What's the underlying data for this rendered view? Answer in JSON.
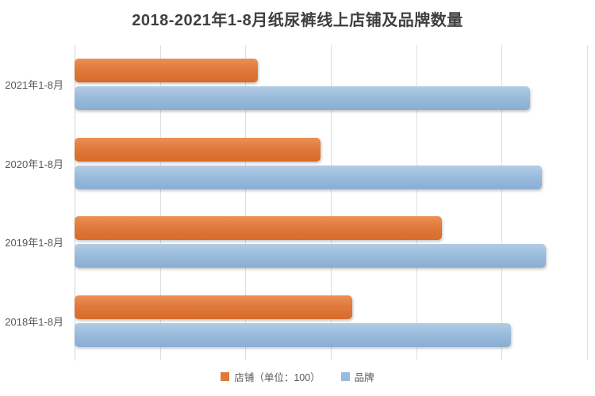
{
  "title": "2018-2021年1-8月纸尿裤线上店铺及品牌数量",
  "legend": {
    "shops_label": "店铺（单位：100）",
    "brands_label": "品牌"
  },
  "colors": {
    "shops": "#e0793c",
    "brands": "#98badb",
    "title_text": "#3f3f3f",
    "axis_text": "#595959",
    "gridline": "#dadfe6"
  },
  "chart_data": {
    "type": "bar",
    "orientation": "horizontal",
    "title": "2018-2021年1-8月纸尿裤线上店铺及品牌数量",
    "categories": [
      "2021年1-8月",
      "2020年1-8月",
      "2019年1-8月",
      "2018年1-8月"
    ],
    "series": [
      {
        "name": "店铺（单位：100）",
        "color": "#e0793c",
        "values": [
          2150,
          2880,
          4300,
          3250
        ]
      },
      {
        "name": "品牌",
        "color": "#98badb",
        "values": [
          5330,
          5470,
          5520,
          5110
        ]
      }
    ],
    "xlim": [
      0,
      6000
    ],
    "gridline_interval": 1000,
    "x_tick_labels_visible": false,
    "grid": "vertical-only",
    "legend_position": "bottom-center"
  }
}
